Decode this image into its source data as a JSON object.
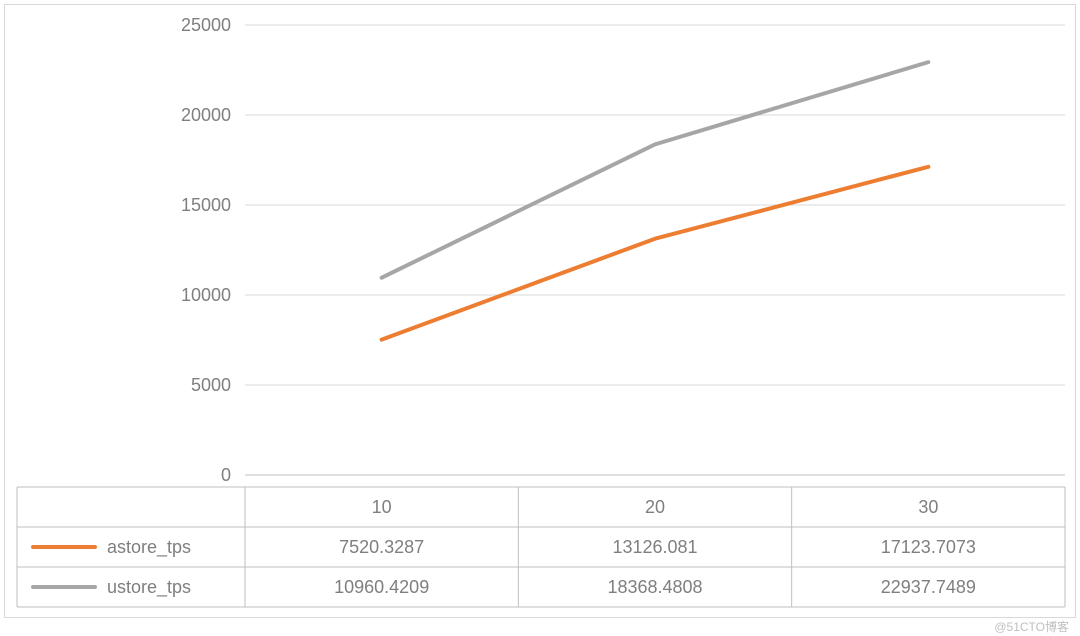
{
  "chart": {
    "type": "line",
    "background_color": "#ffffff",
    "border_color": "#d9d9d9",
    "text_color": "#7f7f7f",
    "grid_color": "#d9d9d9",
    "axis_color": "#bfbfbf",
    "font_size": 18,
    "line_width": 4,
    "y_axis": {
      "min": 0,
      "max": 25000,
      "tick_step": 5000,
      "ticks": [
        0,
        5000,
        10000,
        15000,
        20000,
        25000
      ]
    },
    "x_categories": [
      "10",
      "20",
      "30"
    ],
    "series": [
      {
        "name": "astore_tps",
        "color": "#ed7d31",
        "values": [
          7520.3287,
          13126.081,
          17123.7073
        ],
        "value_labels": [
          "7520.3287",
          "13126.081",
          "17123.7073"
        ]
      },
      {
        "name": "ustore_tps",
        "color": "#a6a6a6",
        "values": [
          10960.4209,
          18368.4808,
          22937.7489
        ],
        "value_labels": [
          "10960.4209",
          "18368.4808",
          "22937.7489"
        ]
      }
    ],
    "watermark": "@51CTO博客"
  }
}
